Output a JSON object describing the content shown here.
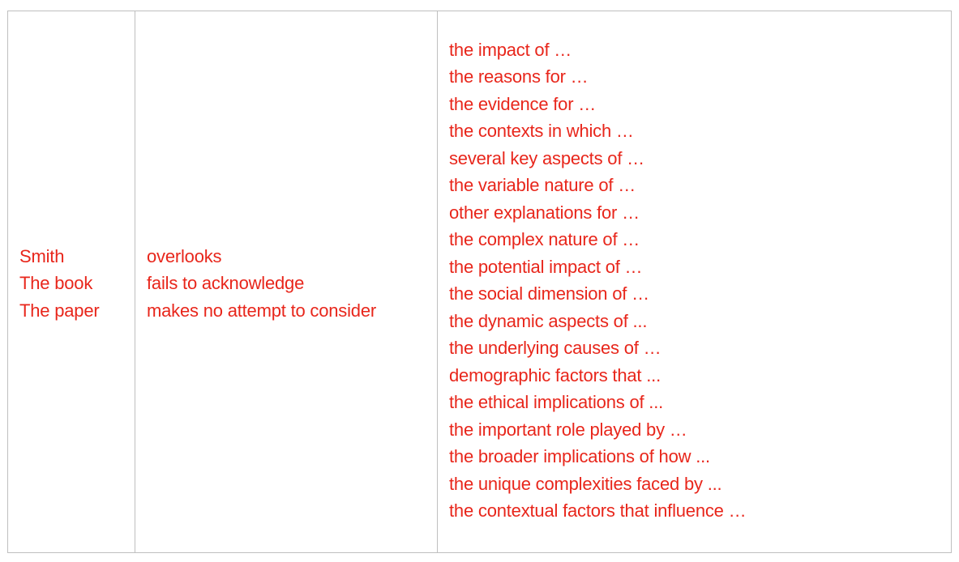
{
  "table": {
    "subjects": [
      "Smith",
      "The book",
      "The paper"
    ],
    "verbs": [
      "overlooks",
      "fails to acknowledge",
      "makes no attempt to consider"
    ],
    "objects": [
      "the impact of …",
      "the reasons for …",
      "the evidence for …",
      "the contexts in which …",
      "several key aspects of …",
      "the variable nature of …",
      "other explanations for …",
      "the complex nature of …",
      "the potential impact of …",
      "the social dimension of …",
      "the dynamic aspects of ...",
      "the underlying causes of …",
      "demographic factors that ...",
      "the ethical implications of ...",
      "the important role played by …",
      "the broader implications of how ...",
      "the unique complexities faced by ...",
      "the contextual factors that influence …"
    ]
  },
  "colors": {
    "text": "#e8261b",
    "border": "#bfbfbf"
  }
}
